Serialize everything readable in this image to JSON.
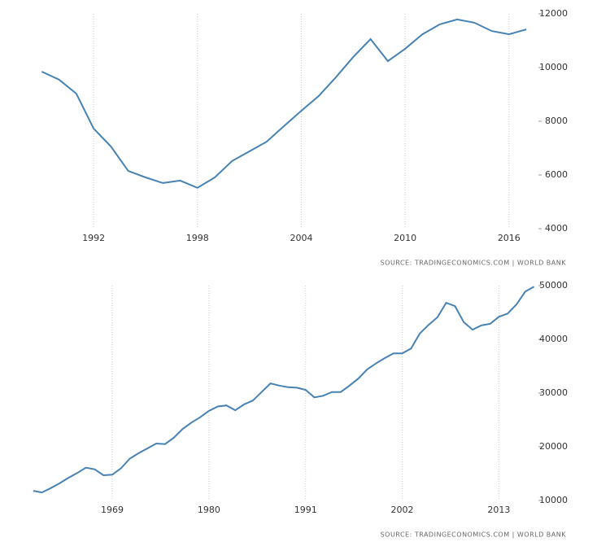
{
  "chart_data": [
    {
      "type": "line",
      "source": "SOURCE: TRADINGECONOMICS.COM | WORLD BANK",
      "color": "#4682b4",
      "grid": true,
      "x": [
        1989,
        1990,
        1991,
        1992,
        1993,
        1994,
        1995,
        1996,
        1997,
        1998,
        1999,
        2000,
        2001,
        2002,
        2003,
        2004,
        2005,
        2006,
        2007,
        2008,
        2009,
        2010,
        2011,
        2012,
        2013,
        2014,
        2015,
        2016,
        2017
      ],
      "values": [
        9850,
        9550,
        9030,
        7730,
        7060,
        6150,
        5910,
        5700,
        5790,
        5520,
        5910,
        6520,
        6880,
        7240,
        7820,
        8390,
        8940,
        9640,
        10390,
        11060,
        10240,
        10700,
        11240,
        11610,
        11790,
        11670,
        11360,
        11240,
        11420
      ],
      "xlim": [
        1988,
        2017.7
      ],
      "xticks": [
        1992,
        1998,
        2004,
        2010,
        2016
      ],
      "ylim": [
        4000,
        12000
      ],
      "yticks": [
        4000,
        6000,
        8000,
        10000,
        12000
      ]
    },
    {
      "type": "line",
      "source": "SOURCE: TRADINGECONOMICS.COM | WORLD BANK",
      "color": "#4682b4",
      "grid": true,
      "x": [
        1960,
        1961,
        1962,
        1963,
        1964,
        1965,
        1966,
        1967,
        1968,
        1969,
        1970,
        1971,
        1972,
        1973,
        1974,
        1975,
        1976,
        1977,
        1978,
        1979,
        1980,
        1981,
        1982,
        1983,
        1984,
        1985,
        1986,
        1987,
        1988,
        1989,
        1990,
        1991,
        1992,
        1993,
        1994,
        1995,
        1996,
        1997,
        1998,
        1999,
        2000,
        2001,
        2002,
        2003,
        2004,
        2005,
        2006,
        2007,
        2008,
        2009,
        2010,
        2011,
        2012,
        2013,
        2014,
        2015,
        2016,
        2017
      ],
      "values": [
        11800,
        11500,
        12300,
        13200,
        14200,
        15100,
        16100,
        15800,
        14700,
        14800,
        16000,
        17800,
        18800,
        19700,
        20600,
        20500,
        21700,
        23300,
        24500,
        25500,
        26700,
        27500,
        27700,
        26800,
        27900,
        28600,
        30200,
        31800,
        31400,
        31100,
        31000,
        30600,
        29200,
        29500,
        30200,
        30200,
        31400,
        32700,
        34400,
        35500,
        36500,
        37400,
        37400,
        38300,
        41100,
        42700,
        44100,
        46800,
        46200,
        43200,
        41800,
        42600,
        42900,
        44200,
        44800,
        46500,
        48900,
        49800
      ],
      "xlim": [
        1959,
        2017.5
      ],
      "xticks": [
        1969,
        1980,
        1991,
        2002,
        2013
      ],
      "ylim": [
        10000,
        50000
      ],
      "yticks": [
        10000,
        20000,
        30000,
        40000,
        50000
      ]
    }
  ]
}
